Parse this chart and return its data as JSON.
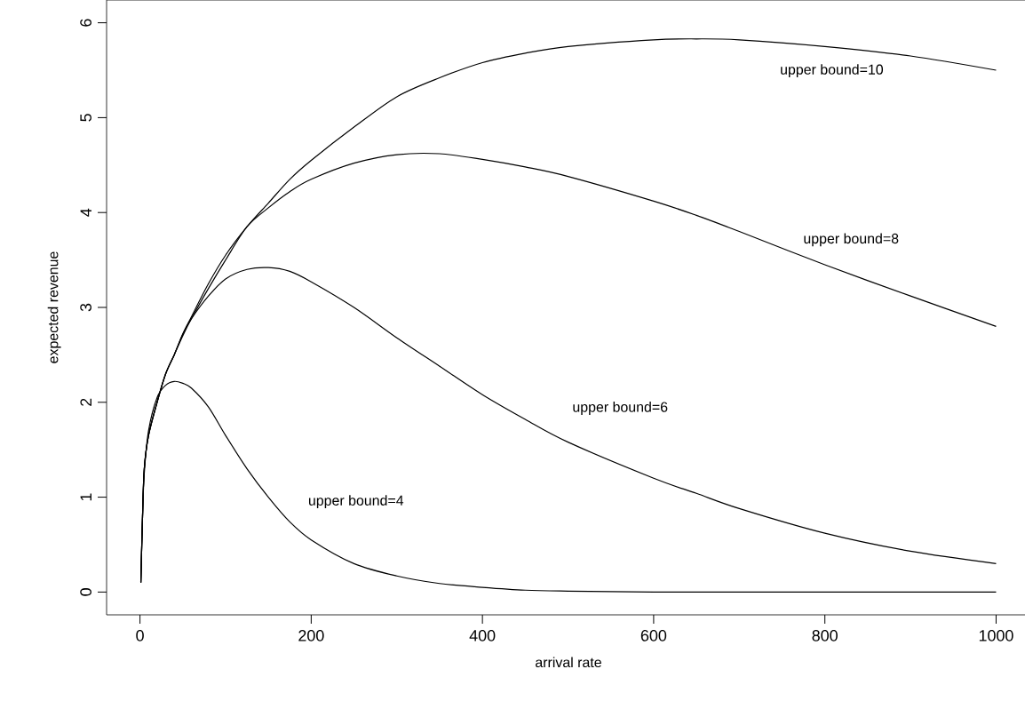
{
  "chart_data": {
    "type": "line",
    "xlabel": "arrival rate",
    "ylabel": "expected revenue",
    "x": [
      1,
      3,
      5,
      10,
      20,
      30,
      40,
      50,
      60,
      80,
      100,
      125,
      150,
      175,
      200,
      250,
      300,
      350,
      400,
      450,
      500,
      600,
      650,
      700,
      800,
      900,
      1000
    ],
    "series": [
      {
        "name": "upper bound=10",
        "color": "#000000",
        "values": [
          0.1,
          0.8,
          1.3,
          1.65,
          2.0,
          2.3,
          2.5,
          2.72,
          2.9,
          3.25,
          3.55,
          3.85,
          4.1,
          4.35,
          4.55,
          4.9,
          5.22,
          5.42,
          5.58,
          5.68,
          5.75,
          5.82,
          5.83,
          5.82,
          5.75,
          5.65,
          5.5
        ]
      },
      {
        "name": "upper bound=8",
        "color": "#000000",
        "values": [
          0.1,
          0.8,
          1.3,
          1.65,
          2.0,
          2.3,
          2.5,
          2.7,
          2.88,
          3.2,
          3.5,
          3.85,
          4.05,
          4.22,
          4.35,
          4.52,
          4.61,
          4.62,
          4.56,
          4.48,
          4.38,
          4.12,
          3.97,
          3.8,
          3.45,
          3.12,
          2.8
        ]
      },
      {
        "name": "upper bound=6",
        "color": "#000000",
        "values": [
          0.1,
          0.8,
          1.3,
          1.65,
          2.0,
          2.3,
          2.5,
          2.72,
          2.88,
          3.12,
          3.3,
          3.4,
          3.42,
          3.38,
          3.27,
          3.0,
          2.68,
          2.38,
          2.08,
          1.82,
          1.58,
          1.2,
          1.04,
          0.88,
          0.62,
          0.43,
          0.3
        ]
      },
      {
        "name": "upper bound=4",
        "color": "#000000",
        "values": [
          0.1,
          0.8,
          1.25,
          1.7,
          2.05,
          2.18,
          2.22,
          2.2,
          2.15,
          1.95,
          1.65,
          1.3,
          1.0,
          0.74,
          0.55,
          0.3,
          0.17,
          0.09,
          0.05,
          0.02,
          0.01,
          0.0,
          0.0,
          0.0,
          0.0,
          0.0,
          0.0
        ]
      }
    ],
    "xlim": [
      -39,
      1040
    ],
    "ylim": [
      -0.24,
      6.24
    ],
    "xticks": [
      0,
      200,
      400,
      600,
      800,
      1000
    ],
    "yticks": [
      0,
      1,
      2,
      3,
      4,
      5,
      6
    ],
    "grid": false,
    "marker": "none",
    "line_style": "solid"
  }
}
